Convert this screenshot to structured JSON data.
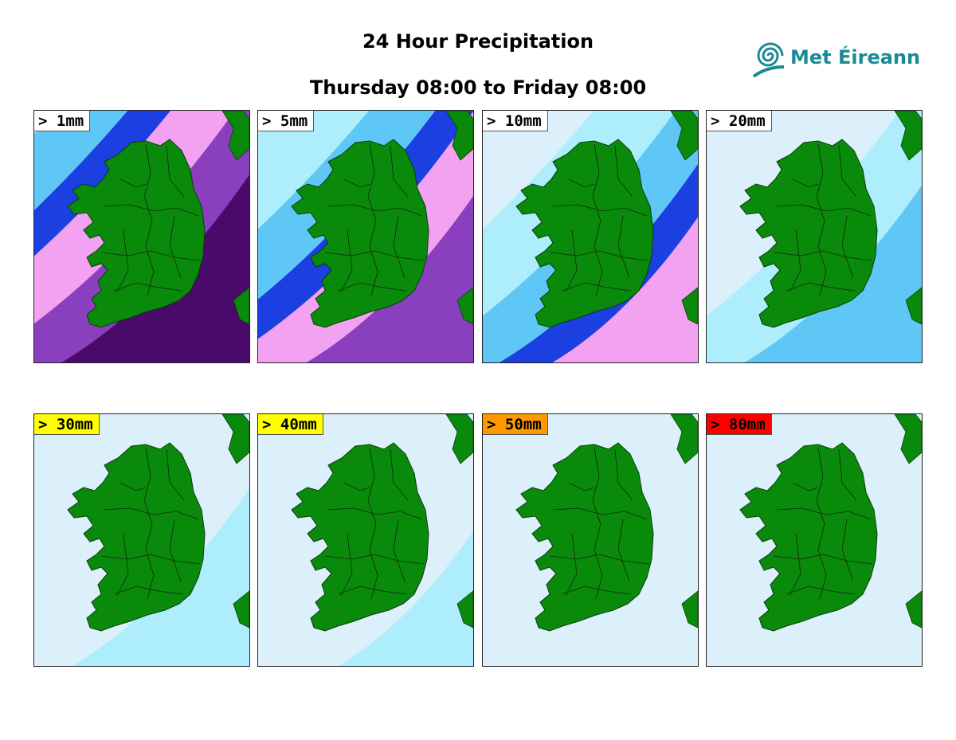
{
  "header": {
    "title": "24 Hour Precipitation",
    "period": "Thursday 08:00 to Friday 08:00"
  },
  "logo": {
    "name": "Met Éireann",
    "color": "#1a8a96"
  },
  "colors": {
    "land": "#0a8a0a",
    "light_blue": "#aeeefc",
    "sky": "#5fc7f5",
    "blue": "#1b3fe0",
    "pink": "#f2a2f0",
    "purple": "#8a3fbf",
    "dark_purple": "#4a0a6a",
    "background": "#dcf0fb"
  },
  "panels": [
    {
      "label": "> 1mm",
      "label_bg": "#ffffff",
      "level": 5
    },
    {
      "label": "> 5mm",
      "label_bg": "#ffffff",
      "level": 4
    },
    {
      "label": "> 10mm",
      "label_bg": "#ffffff",
      "level": 3
    },
    {
      "label": "> 20mm",
      "label_bg": "#ffffff",
      "level": 2
    },
    {
      "label": "> 30mm",
      "label_bg": "#ffff00",
      "level": 1
    },
    {
      "label": "> 40mm",
      "label_bg": "#ffff00",
      "level": 0.6
    },
    {
      "label": "> 50mm",
      "label_bg": "#ff9900",
      "level": 0.3
    },
    {
      "label": "> 80mm",
      "label_bg": "#ff0000",
      "level": 0
    }
  ]
}
